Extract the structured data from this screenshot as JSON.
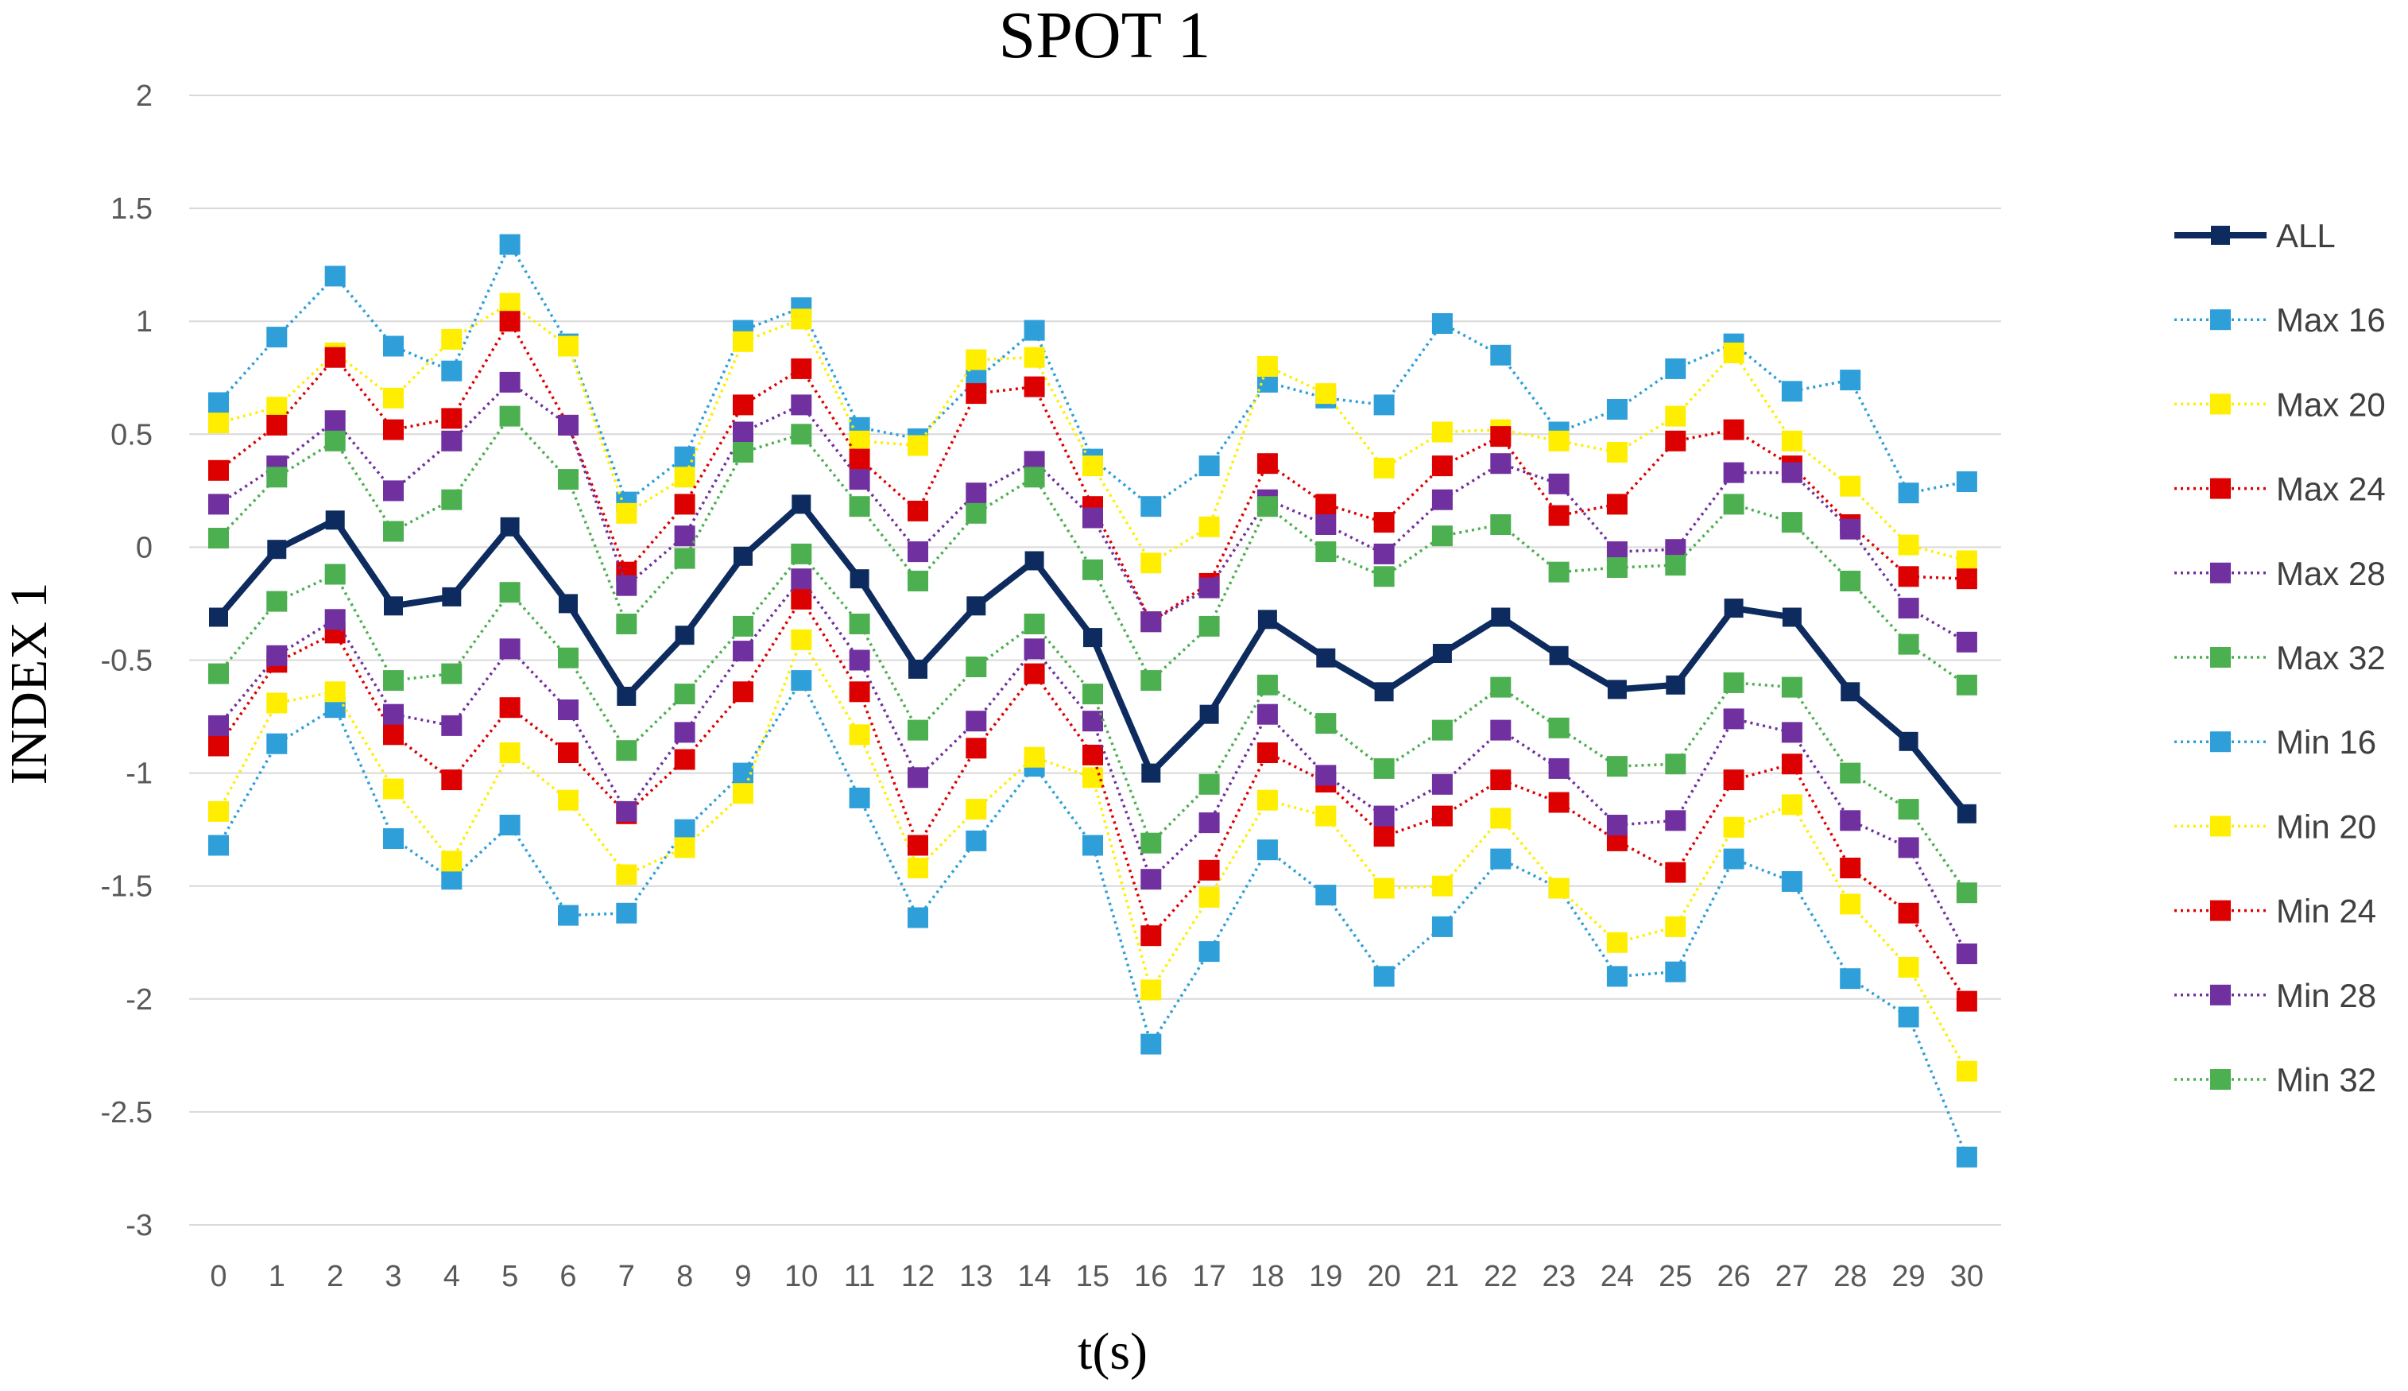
{
  "chart_data": {
    "type": "line",
    "title": "SPOT 1",
    "xlabel": "t(s)",
    "ylabel": "INDEX 1",
    "ylim": [
      -3,
      2
    ],
    "yticks": [
      2,
      1.5,
      1,
      0.5,
      0,
      -0.5,
      -1,
      -1.5,
      -2,
      -2.5,
      -3
    ],
    "ytick_labels": [
      "2",
      "1.5",
      "1",
      "0.5",
      "0",
      "-0.5",
      "-1",
      "-1.5",
      "-2",
      "-2.5",
      "-3"
    ],
    "x": [
      0,
      1,
      2,
      3,
      4,
      5,
      6,
      7,
      8,
      9,
      10,
      11,
      12,
      13,
      14,
      15,
      16,
      17,
      18,
      19,
      20,
      21,
      22,
      23,
      24,
      25,
      26,
      27,
      28,
      29,
      30
    ],
    "x_labels": [
      "0",
      "1",
      "2",
      "3",
      "4",
      "5",
      "6",
      "7",
      "8",
      "9",
      "10",
      "11",
      "12",
      "13",
      "14",
      "15",
      "16",
      "17",
      "18",
      "19",
      "20",
      "21",
      "22",
      "23",
      "24",
      "25",
      "26",
      "27",
      "28",
      "29",
      "30"
    ],
    "grid": true,
    "legend_position": "right",
    "series": [
      {
        "name": "ALL",
        "color": "#0d2b5e",
        "style": "solid",
        "values": [
          -0.31,
          -0.01,
          0.12,
          -0.26,
          -0.22,
          0.09,
          -0.25,
          -0.66,
          -0.39,
          -0.04,
          0.19,
          -0.14,
          -0.54,
          -0.26,
          -0.06,
          -0.4,
          -1.0,
          -0.74,
          -0.32,
          -0.49,
          -0.64,
          -0.47,
          -0.31,
          -0.48,
          -0.63,
          -0.61,
          -0.27,
          -0.31,
          -0.64,
          -0.86,
          -1.18
        ]
      },
      {
        "name": "Max 16",
        "color": "#2e9fd8",
        "style": "dotted",
        "values": [
          0.64,
          0.93,
          1.2,
          0.89,
          0.78,
          1.34,
          0.9,
          0.2,
          0.4,
          0.96,
          1.06,
          0.53,
          0.48,
          0.74,
          0.96,
          0.39,
          0.18,
          0.36,
          0.73,
          0.66,
          0.63,
          0.99,
          0.85,
          0.51,
          0.61,
          0.79,
          0.9,
          0.69,
          0.74,
          0.24,
          0.29
        ]
      },
      {
        "name": "Max 20",
        "color": "#ffee00",
        "style": "dotted",
        "values": [
          0.55,
          0.62,
          0.86,
          0.66,
          0.92,
          1.08,
          0.89,
          0.15,
          0.31,
          0.91,
          1.01,
          0.47,
          0.45,
          0.83,
          0.84,
          0.36,
          -0.07,
          0.09,
          0.8,
          0.68,
          0.35,
          0.51,
          0.52,
          0.47,
          0.42,
          0.58,
          0.86,
          0.47,
          0.27,
          0.01,
          -0.06
        ]
      },
      {
        "name": "Max 24",
        "color": "#dd0000",
        "style": "dotted",
        "values": [
          0.34,
          0.54,
          0.84,
          0.52,
          0.57,
          1.0,
          0.54,
          -0.11,
          0.19,
          0.63,
          0.79,
          0.39,
          0.16,
          0.68,
          0.71,
          0.18,
          -0.33,
          -0.16,
          0.37,
          0.19,
          0.11,
          0.36,
          0.49,
          0.14,
          0.19,
          0.47,
          0.52,
          0.36,
          0.1,
          -0.13,
          -0.14
        ]
      },
      {
        "name": "Max 28",
        "color": "#7030a0",
        "style": "dotted",
        "values": [
          0.19,
          0.36,
          0.56,
          0.25,
          0.47,
          0.73,
          0.54,
          -0.17,
          0.05,
          0.51,
          0.63,
          0.3,
          -0.02,
          0.24,
          0.38,
          0.13,
          -0.33,
          -0.18,
          0.21,
          0.1,
          -0.03,
          0.21,
          0.37,
          0.28,
          -0.02,
          -0.01,
          0.33,
          0.33,
          0.08,
          -0.27,
          -0.42
        ]
      },
      {
        "name": "Max 32",
        "color": "#4caf50",
        "style": "dotted",
        "values": [
          0.04,
          0.31,
          0.47,
          0.07,
          0.21,
          0.58,
          0.3,
          -0.34,
          -0.05,
          0.42,
          0.5,
          0.18,
          -0.15,
          0.15,
          0.31,
          -0.1,
          -0.59,
          -0.35,
          0.18,
          -0.02,
          -0.13,
          0.05,
          0.1,
          -0.11,
          -0.09,
          -0.08,
          0.19,
          0.11,
          -0.15,
          -0.43,
          -0.61
        ]
      },
      {
        "name": "Min 16",
        "color": "#2e9fd8",
        "style": "dotted",
        "values": [
          -1.32,
          -0.87,
          -0.71,
          -1.29,
          -1.47,
          -1.23,
          -1.63,
          -1.62,
          -1.25,
          -1.0,
          -0.59,
          -1.11,
          -1.64,
          -1.3,
          -0.97,
          -1.32,
          -2.2,
          -1.79,
          -1.34,
          -1.54,
          -1.9,
          -1.68,
          -1.38,
          -1.51,
          -1.9,
          -1.88,
          -1.38,
          -1.48,
          -1.91,
          -2.08,
          -2.7
        ]
      },
      {
        "name": "Min 20",
        "color": "#ffee00",
        "style": "dotted",
        "values": [
          -1.17,
          -0.69,
          -0.64,
          -1.07,
          -1.39,
          -0.91,
          -1.12,
          -1.45,
          -1.33,
          -1.09,
          -0.41,
          -0.83,
          -1.42,
          -1.16,
          -0.93,
          -1.02,
          -1.96,
          -1.55,
          -1.12,
          -1.19,
          -1.51,
          -1.5,
          -1.2,
          -1.51,
          -1.75,
          -1.68,
          -1.24,
          -1.14,
          -1.58,
          -1.86,
          -2.32
        ]
      },
      {
        "name": "Min 24",
        "color": "#dd0000",
        "style": "dotted",
        "values": [
          -0.88,
          -0.51,
          -0.38,
          -0.83,
          -1.03,
          -0.71,
          -0.91,
          -1.18,
          -0.94,
          -0.64,
          -0.23,
          -0.64,
          -1.32,
          -0.89,
          -0.56,
          -0.92,
          -1.72,
          -1.43,
          -0.91,
          -1.04,
          -1.28,
          -1.19,
          -1.03,
          -1.13,
          -1.3,
          -1.44,
          -1.03,
          -0.96,
          -1.42,
          -1.62,
          -2.01
        ]
      },
      {
        "name": "Min 28",
        "color": "#7030a0",
        "style": "dotted",
        "values": [
          -0.79,
          -0.48,
          -0.32,
          -0.74,
          -0.79,
          -0.45,
          -0.72,
          -1.17,
          -0.82,
          -0.46,
          -0.14,
          -0.5,
          -1.02,
          -0.77,
          -0.45,
          -0.77,
          -1.47,
          -1.22,
          -0.74,
          -1.01,
          -1.19,
          -1.05,
          -0.81,
          -0.98,
          -1.23,
          -1.21,
          -0.76,
          -0.82,
          -1.21,
          -1.33,
          -1.8
        ]
      },
      {
        "name": "Min 32",
        "color": "#4caf50",
        "style": "dotted",
        "values": [
          -0.56,
          -0.24,
          -0.12,
          -0.59,
          -0.56,
          -0.2,
          -0.49,
          -0.9,
          -0.65,
          -0.35,
          -0.03,
          -0.34,
          -0.81,
          -0.53,
          -0.34,
          -0.65,
          -1.31,
          -1.05,
          -0.61,
          -0.78,
          -0.98,
          -0.81,
          -0.62,
          -0.8,
          -0.97,
          -0.96,
          -0.6,
          -0.62,
          -1.0,
          -1.16,
          -1.53
        ]
      }
    ]
  }
}
